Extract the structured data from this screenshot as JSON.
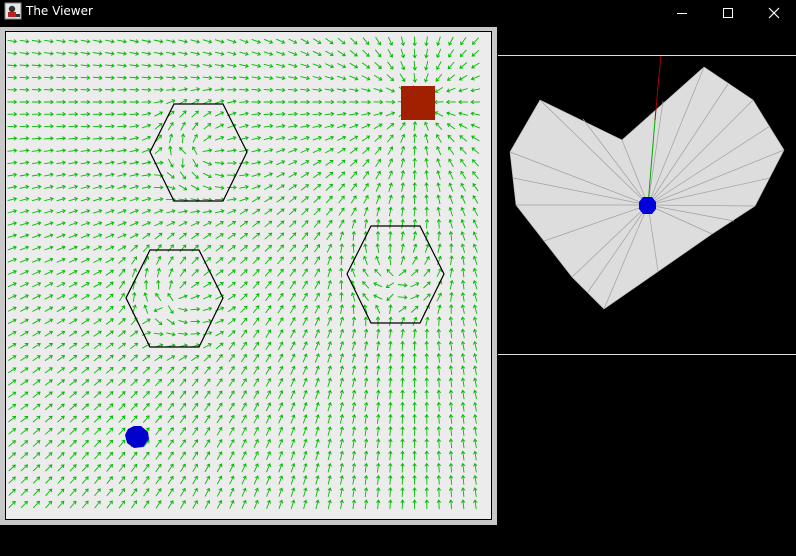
{
  "window": {
    "title": "The Viewer",
    "controls": [
      "minimize",
      "maximize",
      "close"
    ]
  },
  "field": {
    "arrow_color": "#00bb00",
    "obstacle_shape": "hexagon",
    "obstacle_count": 3,
    "goal_color": "#a12000",
    "agent_color": "#0000cc"
  },
  "viewer": {
    "polygon_fill": "#dddddd",
    "center_color": "#0000dd",
    "ray_color_primary": "#00aa00",
    "ray_color_secondary": "#aa0000"
  }
}
